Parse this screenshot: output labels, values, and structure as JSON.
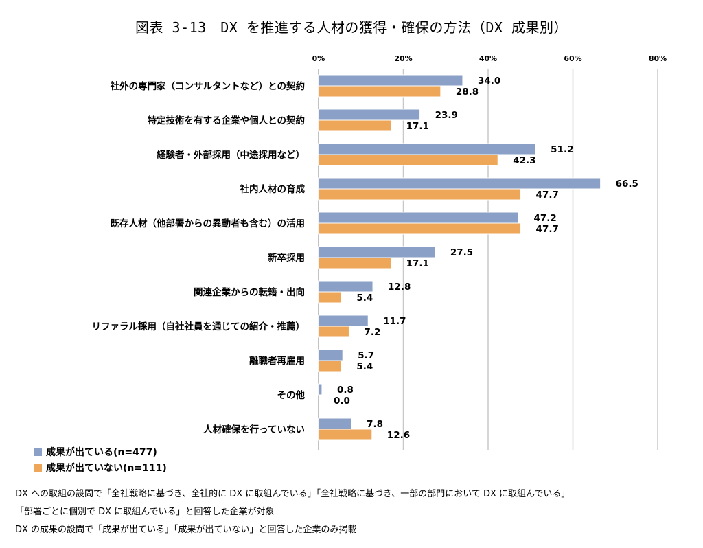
{
  "title": "図表 3-13　DX を推進する人材の獲得・確保の方法（DX 成果別）",
  "legend": [
    {
      "label": "成果が出ている(n=477)",
      "color": "#8aa0c6"
    },
    {
      "label": "成果が出ていない(n=111)",
      "color": "#eea658"
    }
  ],
  "notes": [
    "DX への取組の設問で「全社戦略に基づき、全社的に DX に取組んでいる」「全社戦略に基づき、一部の部門において DX に取組んでいる」",
    "「部署ごとに個別で DX に取組んでいる」と回答した企業が対象",
    "DX の成果の設問で「成果が出ている」「成果が出ていない」と回答した企業のみ掲載"
  ],
  "chart_data": {
    "type": "bar",
    "orientation": "horizontal",
    "xlim": [
      0,
      80
    ],
    "ticks": [
      "0%",
      "20%",
      "40%",
      "60%",
      "80%"
    ],
    "categories": [
      "社外の専門家（コンサルタントなど）との契約",
      "特定技術を有する企業や個人との契約",
      "経験者・外部採用（中途採用など）",
      "社内人材の育成",
      "既存人材（他部署からの異動者も含む）の活用",
      "新卒採用",
      "関連企業からの転籍・出向",
      "リファラル採用（自社社員を通じての紹介・推薦）",
      "離職者再雇用",
      "その他",
      "人材確保を行っていない"
    ],
    "series": [
      {
        "name": "成果が出ている(n=477)",
        "color": "#8aa0c6",
        "values": [
          34.0,
          23.9,
          51.2,
          66.5,
          47.2,
          27.5,
          12.8,
          11.7,
          5.7,
          0.8,
          7.8
        ],
        "labels": [
          "34.0",
          "23.9",
          "51.2",
          "66.5",
          "47.2",
          "27.5",
          "12.8",
          "11.7",
          "5.7",
          "0.8",
          "7.8"
        ]
      },
      {
        "name": "成果が出ていない(n=111)",
        "color": "#eea658",
        "values": [
          28.8,
          17.1,
          42.3,
          47.7,
          47.7,
          17.1,
          5.4,
          7.2,
          5.4,
          0.0,
          12.6
        ],
        "labels": [
          "28.8",
          "17.1",
          "42.3",
          "47.7",
          "47.7",
          "17.1",
          "5.4",
          "7.2",
          "5.4",
          "0.0",
          "12.6"
        ]
      }
    ],
    "grid": true,
    "legend_position": "bottom-left"
  }
}
